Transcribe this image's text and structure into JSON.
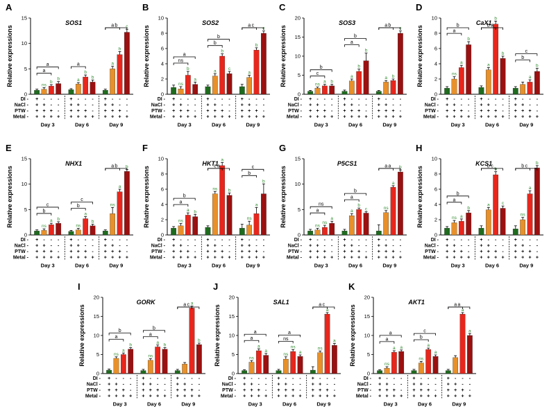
{
  "figure": {
    "ylabel": "Relative expressions",
    "row_labels": [
      "DI",
      "NaCl",
      "PTW",
      "Metal"
    ],
    "days": [
      "Day 3",
      "Day 6",
      "Day 9"
    ],
    "signs": [
      [
        "+",
        "+",
        "+",
        "+"
      ],
      [
        "-",
        "+",
        "+",
        "+"
      ],
      [
        "-",
        "-",
        "+",
        "+"
      ],
      [
        "-",
        "-",
        "-",
        "+"
      ]
    ],
    "colors": [
      "#1e6b1e",
      "#e8902a",
      "#e8261c",
      "#9b1010"
    ]
  },
  "chart_data": [
    {
      "letter": "A",
      "gene": "SOS1",
      "type": "bar",
      "ylim": [
        0,
        15
      ],
      "yticks": [
        0,
        5,
        10,
        15
      ],
      "values": [
        [
          0.8,
          1.0,
          1.6,
          2.1
        ],
        [
          0.9,
          2.0,
          3.4,
          2.4
        ],
        [
          0.8,
          5.0,
          7.8,
          12.2
        ]
      ],
      "errors": [
        [
          0.2,
          0.3,
          0.3,
          0.4
        ],
        [
          0.2,
          0.3,
          0.4,
          0.4
        ],
        [
          0.2,
          0.5,
          0.6,
          0.6
        ]
      ],
      "sig": [
        [
          "",
          "ns",
          "b",
          "b"
        ],
        [
          "",
          "a",
          "b",
          "b"
        ],
        [
          "",
          "a",
          "b",
          "c"
        ]
      ],
      "brackets": [
        [
          [
            "a",
            1
          ],
          [
            "a",
            2
          ]
        ],
        [
          [
            "a",
            1
          ]
        ],
        [
          [
            "a",
            1
          ],
          [
            "b",
            2
          ]
        ]
      ]
    },
    {
      "letter": "B",
      "gene": "SOS2",
      "type": "bar",
      "ylim": [
        0,
        10
      ],
      "yticks": [
        0,
        2,
        4,
        6,
        8,
        10
      ],
      "values": [
        [
          0.9,
          0.7,
          2.5,
          1.3
        ],
        [
          1.0,
          2.4,
          5.0,
          2.7
        ],
        [
          1.0,
          2.2,
          5.8,
          8.0
        ]
      ],
      "errors": [
        [
          0.3,
          0.3,
          0.5,
          0.3
        ],
        [
          0.2,
          0.3,
          0.3,
          0.3
        ],
        [
          0.3,
          0.3,
          0.3,
          0.3
        ]
      ],
      "sig": [
        [
          "",
          "ns",
          "b",
          "a"
        ],
        [
          "",
          "a",
          "b",
          "c"
        ],
        [
          "",
          "a",
          "b",
          "c"
        ]
      ],
      "brackets": [
        [
          [
            "ns",
            1
          ],
          [
            "a",
            2
          ]
        ],
        [
          [
            "b",
            1
          ],
          [
            "b",
            2
          ]
        ],
        [
          [
            "a",
            1
          ],
          [
            "c",
            2
          ]
        ]
      ]
    },
    {
      "letter": "C",
      "gene": "SOS3",
      "type": "bar",
      "ylim": [
        0,
        20
      ],
      "yticks": [
        0,
        5,
        10,
        15,
        20
      ],
      "values": [
        [
          0.8,
          1.6,
          2.2,
          2.2
        ],
        [
          0.8,
          3.5,
          6.0,
          8.8
        ],
        [
          0.8,
          3.2,
          3.6,
          16.0
        ]
      ],
      "errors": [
        [
          0.2,
          0.3,
          0.4,
          0.4
        ],
        [
          0.3,
          0.5,
          0.6,
          2.0
        ],
        [
          0.2,
          0.4,
          0.4,
          0.6
        ]
      ],
      "sig": [
        [
          "",
          "ns",
          "a",
          "b"
        ],
        [
          "",
          "a",
          "b",
          "b"
        ],
        [
          "",
          "a",
          "b",
          "c"
        ]
      ],
      "brackets": [
        [
          [
            "c",
            1
          ],
          [
            "b",
            2
          ]
        ],
        [
          [
            "a",
            1
          ],
          [
            "b",
            2
          ]
        ],
        [
          [
            "a",
            1
          ],
          [
            "b",
            2
          ]
        ]
      ]
    },
    {
      "letter": "D",
      "gene": "CaX1",
      "type": "bar",
      "ylim": [
        0,
        10
      ],
      "yticks": [
        0,
        2,
        4,
        6,
        8,
        10
      ],
      "values": [
        [
          0.8,
          2.0,
          3.5,
          6.5
        ],
        [
          0.9,
          3.2,
          9.2,
          4.7
        ],
        [
          0.8,
          1.3,
          1.6,
          3.0
        ]
      ],
      "errors": [
        [
          0.2,
          0.3,
          0.3,
          0.4
        ],
        [
          0.2,
          0.3,
          0.4,
          0.3
        ],
        [
          0.2,
          0.3,
          0.3,
          0.4
        ]
      ],
      "sig": [
        [
          "",
          "ns",
          "a",
          "b"
        ],
        [
          "",
          "a",
          "b",
          "b"
        ],
        [
          "",
          "",
          "a",
          "b"
        ]
      ],
      "brackets": [
        [
          [
            "a",
            1
          ],
          [
            "b",
            2
          ]
        ],
        [
          [
            "b",
            1
          ],
          [
            "a",
            2
          ]
        ],
        [
          [
            "b",
            1
          ],
          [
            "c",
            2
          ]
        ]
      ]
    },
    {
      "letter": "E",
      "gene": "NHX1",
      "type": "bar",
      "ylim": [
        0,
        15
      ],
      "yticks": [
        0,
        5,
        10,
        15
      ],
      "values": [
        [
          0.8,
          0.9,
          2.0,
          2.3
        ],
        [
          0.7,
          1.0,
          3.2,
          1.8
        ],
        [
          0.8,
          4.2,
          8.5,
          12.5
        ]
      ],
      "errors": [
        [
          0.2,
          0.3,
          0.3,
          0.3
        ],
        [
          0.2,
          0.3,
          0.4,
          0.3
        ],
        [
          0.2,
          1.2,
          0.5,
          0.4
        ]
      ],
      "sig": [
        [
          "",
          "ns",
          "a",
          "b"
        ],
        [
          "",
          "ns",
          "a",
          "b"
        ],
        [
          "",
          "ns",
          "a",
          "b"
        ]
      ],
      "brackets": [
        [
          [
            "b",
            1
          ],
          [
            "c",
            2
          ]
        ],
        [
          [
            "b",
            1
          ],
          [
            "c",
            2
          ]
        ],
        [
          [
            "a",
            1
          ],
          [
            "b",
            2
          ]
        ]
      ]
    },
    {
      "letter": "F",
      "gene": "HKT1",
      "type": "bar",
      "ylim": [
        0,
        10
      ],
      "yticks": [
        0,
        2,
        4,
        6,
        8,
        10
      ],
      "values": [
        [
          0.9,
          1.2,
          2.6,
          2.4
        ],
        [
          1.0,
          5.4,
          9.1,
          5.2
        ],
        [
          0.9,
          1.3,
          2.8,
          5.4
        ]
      ],
      "errors": [
        [
          0.2,
          0.3,
          0.3,
          0.3
        ],
        [
          0.2,
          0.3,
          0.4,
          0.3
        ],
        [
          0.5,
          0.5,
          0.8,
          1.3
        ]
      ],
      "sig": [
        [
          "",
          "ns",
          "a",
          "b"
        ],
        [
          "",
          "ns",
          "a",
          "b"
        ],
        [
          "",
          "ns",
          "a",
          "b"
        ]
      ],
      "brackets": [
        [
          [
            "a",
            1
          ],
          [
            "b",
            2
          ]
        ],
        [
          [
            "c",
            1
          ],
          [
            "a",
            2
          ]
        ],
        [
          [
            "b",
            1
          ],
          [
            "c",
            2
          ]
        ]
      ]
    },
    {
      "letter": "G",
      "gene": "P5CS1",
      "type": "bar",
      "ylim": [
        0,
        15
      ],
      "yticks": [
        0,
        5,
        10,
        15
      ],
      "values": [
        [
          0.8,
          1.0,
          1.5,
          2.3
        ],
        [
          0.8,
          3.8,
          5.0,
          4.3
        ],
        [
          0.8,
          4.4,
          9.4,
          12.4
        ]
      ],
      "errors": [
        [
          0.3,
          0.3,
          0.4,
          0.4
        ],
        [
          0.3,
          0.4,
          0.3,
          0.3
        ],
        [
          1.2,
          0.4,
          0.3,
          0.4
        ]
      ],
      "sig": [
        [
          "",
          "ns",
          "ns",
          "a"
        ],
        [
          "",
          "a",
          "b",
          "c"
        ],
        [
          "",
          "ns",
          "a",
          "b"
        ]
      ],
      "brackets": [
        [
          [
            "a",
            1
          ],
          [
            "ns",
            2
          ]
        ],
        [
          [
            "a",
            1
          ],
          [
            "b",
            2
          ]
        ],
        [
          [
            "a",
            1
          ],
          [
            "a",
            2
          ]
        ]
      ]
    },
    {
      "letter": "H",
      "gene": "KCS1",
      "type": "bar",
      "ylim": [
        0,
        10
      ],
      "yticks": [
        0,
        2,
        4,
        6,
        8,
        10
      ],
      "values": [
        [
          0.9,
          1.6,
          1.8,
          2.9
        ],
        [
          0.9,
          3.3,
          7.9,
          3.5
        ],
        [
          0.8,
          2.0,
          5.4,
          8.8
        ]
      ],
      "errors": [
        [
          0.2,
          0.3,
          0.3,
          0.3
        ],
        [
          0.3,
          0.3,
          0.4,
          0.3
        ],
        [
          0.4,
          0.3,
          0.4,
          0.3
        ]
      ],
      "sig": [
        [
          "",
          "ns",
          "a",
          "b"
        ],
        [
          "",
          "a",
          "b",
          "c"
        ],
        [
          "",
          "ns",
          "a",
          "b"
        ]
      ],
      "brackets": [
        [
          [
            "a",
            1
          ],
          [
            "b",
            2
          ]
        ],
        [
          [
            "b",
            1
          ],
          [
            "c",
            2
          ]
        ],
        [
          [
            "b",
            1
          ],
          [
            "c",
            2
          ]
        ]
      ]
    },
    {
      "letter": "I",
      "gene": "GORK",
      "type": "bar",
      "ylim": [
        0,
        20
      ],
      "yticks": [
        0,
        5,
        10,
        15,
        20
      ],
      "values": [
        [
          0.9,
          4.0,
          5.0,
          6.4
        ],
        [
          0.8,
          3.5,
          7.0,
          6.4
        ],
        [
          0.8,
          2.5,
          17.2,
          7.6
        ]
      ],
      "errors": [
        [
          0.3,
          0.4,
          0.4,
          0.4
        ],
        [
          0.3,
          0.4,
          0.5,
          0.4
        ],
        [
          0.3,
          0.4,
          0.5,
          0.4
        ]
      ],
      "sig": [
        [
          "",
          "ns",
          "a",
          "b"
        ],
        [
          "",
          "ns",
          "a",
          "b"
        ],
        [
          "",
          "",
          "a",
          "b"
        ]
      ],
      "brackets": [
        [
          [
            "a",
            1
          ],
          [
            "b",
            2
          ]
        ],
        [
          [
            "a",
            1
          ],
          [
            "b",
            2
          ]
        ],
        [
          [
            "a",
            1
          ],
          [
            "c",
            2
          ]
        ]
      ]
    },
    {
      "letter": "J",
      "gene": "SAL1",
      "type": "bar",
      "ylim": [
        0,
        20
      ],
      "yticks": [
        0,
        5,
        10,
        15,
        20
      ],
      "values": [
        [
          0.8,
          3.0,
          6.0,
          4.8
        ],
        [
          0.8,
          3.8,
          5.8,
          4.5
        ],
        [
          0.9,
          5.5,
          15.6,
          7.4
        ]
      ],
      "errors": [
        [
          0.2,
          0.4,
          0.5,
          0.5
        ],
        [
          0.3,
          0.6,
          0.5,
          0.4
        ],
        [
          0.9,
          0.4,
          0.4,
          0.5
        ]
      ],
      "sig": [
        [
          "",
          "ns",
          "a",
          "a"
        ],
        [
          "",
          "ns",
          "ns",
          "a"
        ],
        [
          "",
          "ns",
          "a",
          "a"
        ]
      ],
      "brackets": [
        [
          [
            "a",
            1
          ],
          [
            "a",
            2
          ]
        ],
        [
          [
            "ns",
            1
          ],
          [
            "a",
            2
          ]
        ],
        [
          [
            "a",
            1
          ],
          [
            "c",
            2
          ]
        ]
      ]
    },
    {
      "letter": "K",
      "gene": "AKT1",
      "type": "bar",
      "ylim": [
        0,
        20
      ],
      "yticks": [
        0,
        5,
        10,
        15,
        20
      ],
      "values": [
        [
          0.8,
          1.4,
          5.6,
          5.8
        ],
        [
          0.8,
          2.8,
          6.3,
          4.5
        ],
        [
          0.8,
          4.2,
          15.6,
          10.0
        ]
      ],
      "errors": [
        [
          0.2,
          0.4,
          0.4,
          0.4
        ],
        [
          0.3,
          0.4,
          0.4,
          0.4
        ],
        [
          0.3,
          0.5,
          0.4,
          0.5
        ]
      ],
      "sig": [
        [
          "",
          "ns",
          "a",
          "a"
        ],
        [
          "",
          "ns",
          "a",
          "a"
        ],
        [
          "",
          "",
          "a",
          "a"
        ]
      ],
      "brackets": [
        [
          [
            "a",
            1
          ],
          [
            "a",
            2
          ]
        ],
        [
          [
            "b",
            1
          ],
          [
            "c",
            2
          ]
        ],
        [
          [
            "a",
            1
          ],
          [
            "a",
            2
          ]
        ]
      ]
    }
  ]
}
